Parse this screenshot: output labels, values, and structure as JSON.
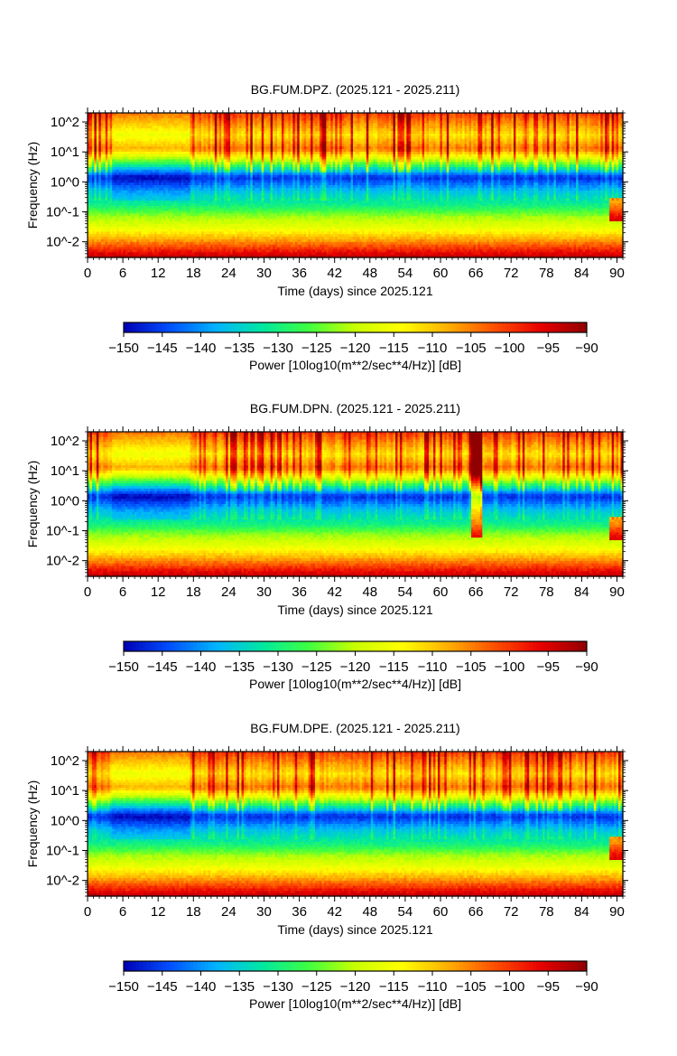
{
  "figure": {
    "ytick_labels": [
      "10^2",
      "10^1",
      "10^0",
      "10^-1",
      "10^-2"
    ],
    "colorscale": [
      "#0000b4",
      "#0050ff",
      "#00b4ff",
      "#00e8a0",
      "#40ff40",
      "#c8ff00",
      "#ffff00",
      "#ffb000",
      "#ff5000",
      "#e80000",
      "#900000"
    ]
  },
  "chart_data": [
    {
      "type": "heatmap",
      "title": "BG.FUM.DPZ. (2025.121 - 2025.211)",
      "xlabel": "Time (days) since 2025.121",
      "ylabel": "Frequency (Hz)",
      "x_ticks": [
        0,
        6,
        12,
        18,
        24,
        30,
        36,
        42,
        48,
        54,
        60,
        66,
        72,
        78,
        84,
        90
      ],
      "xlim": [
        0,
        91
      ],
      "ylim": [
        0.003,
        200
      ],
      "y_scale": "log",
      "colorbar": {
        "label": "Power [10log10(m**2/sec**4/Hz)] [dB]",
        "ticks": [
          -150,
          -145,
          -140,
          -135,
          -130,
          -125,
          -120,
          -115,
          -110,
          -105,
          -100,
          -95,
          -90
        ],
        "range": [
          -150,
          -90
        ]
      }
    },
    {
      "type": "heatmap",
      "title": "BG.FUM.DPN. (2025.121 - 2025.211)",
      "xlabel": "Time (days) since 2025.121",
      "ylabel": "Frequency (Hz)",
      "x_ticks": [
        0,
        6,
        12,
        18,
        24,
        30,
        36,
        42,
        48,
        54,
        60,
        66,
        72,
        78,
        84,
        90
      ],
      "xlim": [
        0,
        91
      ],
      "ylim": [
        0.003,
        200
      ],
      "y_scale": "log",
      "colorbar": {
        "label": "Power [10log10(m**2/sec**4/Hz)] [dB]",
        "ticks": [
          -150,
          -145,
          -140,
          -135,
          -130,
          -125,
          -120,
          -115,
          -110,
          -105,
          -100,
          -95,
          -90
        ],
        "range": [
          -150,
          -90
        ]
      }
    },
    {
      "type": "heatmap",
      "title": "BG.FUM.DPE. (2025.121 - 2025.211)",
      "xlabel": "Time (days) since 2025.121",
      "ylabel": "Frequency (Hz)",
      "x_ticks": [
        0,
        6,
        12,
        18,
        24,
        30,
        36,
        42,
        48,
        54,
        60,
        66,
        72,
        78,
        84,
        90
      ],
      "xlim": [
        0,
        91
      ],
      "ylim": [
        0.003,
        200
      ],
      "y_scale": "log",
      "colorbar": {
        "label": "Power [10log10(m**2/sec**4/Hz)] [dB]",
        "ticks": [
          -150,
          -145,
          -140,
          -135,
          -130,
          -125,
          -120,
          -115,
          -110,
          -105,
          -100,
          -95,
          -90
        ],
        "range": [
          -150,
          -90
        ]
      }
    }
  ]
}
